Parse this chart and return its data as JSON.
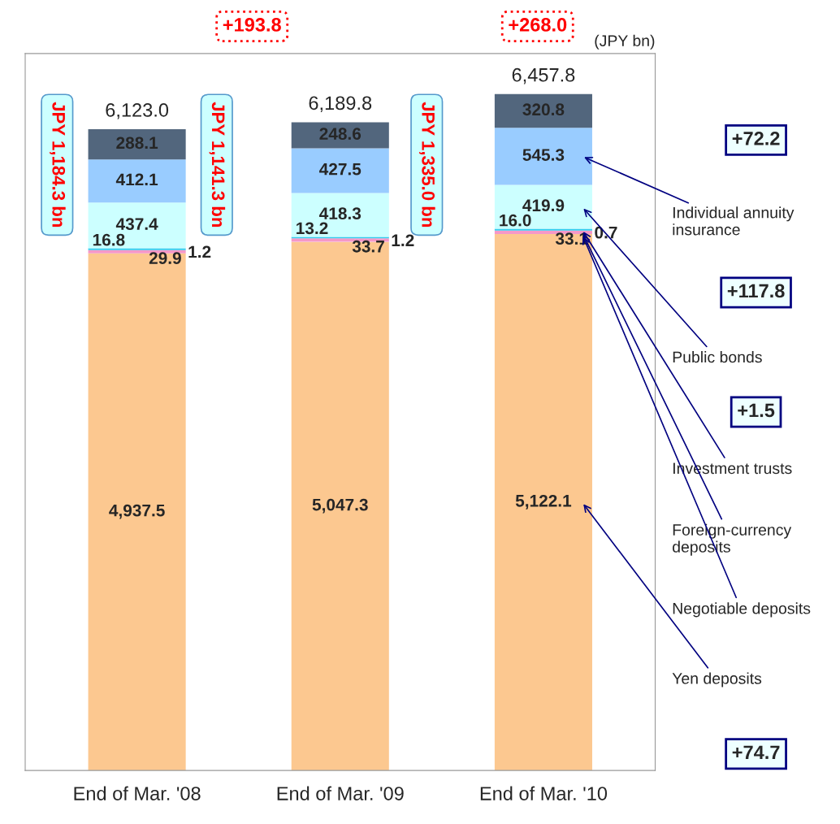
{
  "chart_data": {
    "type": "bar",
    "stacked": true,
    "categories": [
      "End of Mar. '08",
      "End of Mar. '09",
      "End of Mar. '10"
    ],
    "series": [
      {
        "name": "Yen deposits",
        "color": "#fcc890",
        "values": [
          4937.5,
          5047.3,
          5122.1
        ],
        "value_labels": [
          "4,937.5",
          "5,047.3",
          "5,122.1"
        ]
      },
      {
        "name": "Negotiable deposits",
        "color": "#eeeeee",
        "values": [
          1.2,
          1.2,
          0.7
        ],
        "value_labels": [
          "1.2",
          "1.2",
          "0.7"
        ]
      },
      {
        "name": "Foreign-currency deposits",
        "color": "#f598c8",
        "values": [
          29.9,
          33.7,
          33.1
        ],
        "value_labels": [
          "29.9",
          "33.7",
          "33.1"
        ]
      },
      {
        "name": "Investment trusts",
        "color": "#33ccee",
        "values": [
          16.8,
          13.2,
          16.0
        ],
        "value_labels": [
          "16.8",
          "13.2",
          "16.0"
        ]
      },
      {
        "name": "Public bonds",
        "color": "#ccffff",
        "values": [
          437.4,
          418.3,
          419.9
        ],
        "value_labels": [
          "437.4",
          "418.3",
          "419.9"
        ]
      },
      {
        "name": "Individual annuity insurance",
        "color": "#99ccff",
        "values": [
          412.1,
          427.5,
          545.3
        ],
        "value_labels": [
          "412.1",
          "427.5",
          "545.3"
        ]
      },
      {
        "color": "#52667d",
        "values": [
          288.1,
          248.6,
          320.8
        ],
        "value_labels": [
          "288.1",
          "248.6",
          "320.8"
        ]
      }
    ],
    "totals": [
      "6,123.0",
      "6,189.8",
      "6,457.8"
    ],
    "tick_labels": "x",
    "grid": false,
    "legend": false,
    "annotations": [
      "(JPY bn)",
      "+268.0",
      "+193.8",
      "JPY 1,184.3 bn",
      "JPY 1,141.3 bn",
      "JPY 1,335.0 bn",
      "+72.2",
      "+117.8",
      "+1.5",
      "+74.7"
    ]
  }
}
